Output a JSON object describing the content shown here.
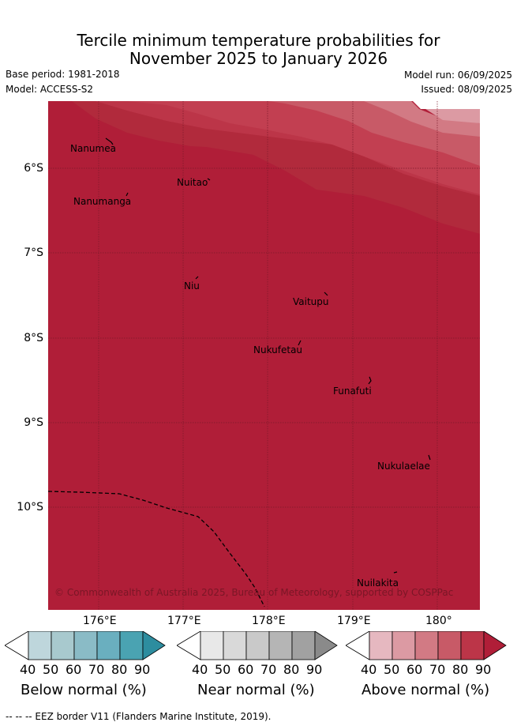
{
  "header": {
    "title_line1": "Tercile minimum temperature probabilities for",
    "title_line2": "November 2025 to January 2026",
    "base_period": "Base period: 1981-2018",
    "model": "Model: ACCESS-S2",
    "model_run": "Model run: 06/09/2025",
    "issued": "Issued: 08/09/2025"
  },
  "map": {
    "lat_labels": [
      "6°S",
      "7°S",
      "8°S",
      "9°S",
      "10°S"
    ],
    "lon_labels": [
      "176°E",
      "177°E",
      "178°E",
      "179°E",
      "180°"
    ],
    "islands": [
      {
        "name": "Nanumea"
      },
      {
        "name": "Nuitao"
      },
      {
        "name": "Nanumanga"
      },
      {
        "name": "Niu"
      },
      {
        "name": "Vaitupu"
      },
      {
        "name": "Nukufetau"
      },
      {
        "name": "Funafuti"
      },
      {
        "name": "Nukulaelae"
      },
      {
        "name": "Nuilakita"
      }
    ],
    "copyright": "© Commonwealth of Australia 2025, Bureau of Meteorology, supported by COSPPac",
    "eez_line_color": "#000000"
  },
  "legend": {
    "tick_labels": [
      "40",
      "50",
      "60",
      "70",
      "80",
      "90"
    ],
    "below": {
      "title": "Below normal (%)",
      "colors": [
        "#ffffff",
        "#bed6dc",
        "#a8c9ce",
        "#8abbc6",
        "#6aafbf",
        "#4aa3b2",
        "#2d8d9f"
      ]
    },
    "near": {
      "title": "Near normal (%)",
      "colors": [
        "#ffffff",
        "#e8e8e8",
        "#d9d9d9",
        "#c9c9c9",
        "#b5b5b5",
        "#a1a1a1",
        "#8a8a8a"
      ]
    },
    "above": {
      "title": "Above normal (%)",
      "colors": [
        "#ffffff",
        "#e6b8c0",
        "#dc9aa3",
        "#d27a84",
        "#c85a67",
        "#bc3548",
        "#b01e38"
      ]
    }
  },
  "footer": "--  --  -- EEZ border V11 (Flanders Marine Institute, 2019)."
}
